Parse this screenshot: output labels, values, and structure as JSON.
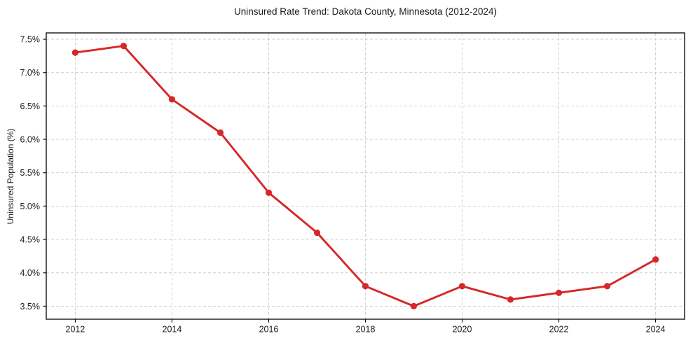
{
  "figure": {
    "background": "#ffffff"
  },
  "chart_data": {
    "type": "line",
    "title": "Uninsured Rate Trend: Dakota County, Minnesota (2012-2024)",
    "xlabel": "",
    "ylabel": "Uninsured Population (%)",
    "x": [
      2012,
      2013,
      2014,
      2015,
      2016,
      2017,
      2018,
      2019,
      2020,
      2021,
      2022,
      2023,
      2024
    ],
    "series": [
      {
        "name": "Uninsured Rate",
        "values": [
          7.3,
          7.4,
          6.6,
          6.1,
          5.2,
          4.6,
          3.8,
          3.5,
          3.8,
          3.6,
          3.7,
          3.8,
          4.2
        ],
        "color": "#d62728"
      }
    ],
    "xticks": [
      2012,
      2014,
      2016,
      2018,
      2020,
      2022,
      2024
    ],
    "yticks": [
      3.5,
      4.0,
      4.5,
      5.0,
      5.5,
      6.0,
      6.5,
      7.0,
      7.5
    ],
    "ytick_decimals": 1,
    "ytick_suffix": "%",
    "xlim": [
      2011.4,
      2024.6
    ],
    "ylim": [
      3.305,
      7.595
    ],
    "grid": true,
    "grid_style": "dashed",
    "grid_color": "#cccccc",
    "axis_color": "#000000",
    "tick_label_color": "#1a1a1a",
    "legend": "none",
    "marker": "circle",
    "marker_radius": 4.6,
    "line_width": 2.9
  }
}
